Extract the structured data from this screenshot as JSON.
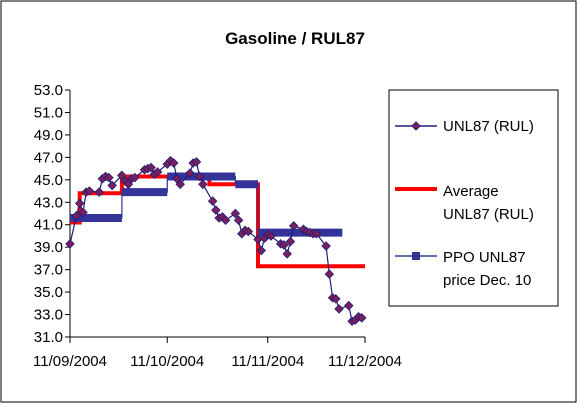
{
  "chart_data": {
    "type": "line",
    "title": "Gasoline / RUL87",
    "xlabel": "",
    "ylabel": "",
    "ylim": [
      31.0,
      53.0
    ],
    "yticks": [
      31.0,
      33.0,
      35.0,
      37.0,
      39.0,
      41.0,
      43.0,
      45.0,
      47.0,
      49.0,
      51.0,
      53.0
    ],
    "ytick_labels": [
      "31.0",
      "33.0",
      "35.0",
      "37.0",
      "39.0",
      "41.0",
      "43.0",
      "45.0",
      "47.0",
      "49.0",
      "51.0",
      "53.0"
    ],
    "xlim": [
      "2004-09-11",
      "2004-12-11"
    ],
    "xticks": [
      "2004-09-11",
      "2004-10-11",
      "2004-11-11",
      "2004-12-11"
    ],
    "xtick_labels": [
      "11/09/2004",
      "11/10/2004",
      "11/11/2004",
      "11/12/2004"
    ],
    "grid": false,
    "legend_position": "right",
    "series": [
      {
        "name": "UNL87 (RUL)",
        "color": "#1F1F7A",
        "marker_color": "#7A1F5C",
        "marker": "diamond",
        "x": [
          "2004-09-11",
          "2004-09-13",
          "2004-09-14",
          "2004-09-15",
          "2004-09-16",
          "2004-09-17",
          "2004-09-20",
          "2004-09-21",
          "2004-09-22",
          "2004-09-23",
          "2004-09-24",
          "2004-09-27",
          "2004-09-28",
          "2004-09-29",
          "2004-09-30",
          "2004-10-01",
          "2004-10-04",
          "2004-10-05",
          "2004-10-06",
          "2004-10-07",
          "2004-10-08",
          "2004-10-11",
          "2004-10-12",
          "2004-10-13",
          "2004-10-14",
          "2004-10-15",
          "2004-10-18",
          "2004-10-19",
          "2004-10-20",
          "2004-10-21",
          "2004-10-22",
          "2004-10-25",
          "2004-10-26",
          "2004-10-27",
          "2004-10-28",
          "2004-10-29",
          "2004-11-01",
          "2004-11-02",
          "2004-11-03",
          "2004-11-04",
          "2004-11-05",
          "2004-11-08",
          "2004-11-09",
          "2004-11-10",
          "2004-11-11",
          "2004-11-12",
          "2004-11-15",
          "2004-11-16",
          "2004-11-17",
          "2004-11-18",
          "2004-11-19",
          "2004-11-22",
          "2004-11-23",
          "2004-11-24",
          "2004-11-25",
          "2004-11-26",
          "2004-11-29",
          "2004-11-30",
          "2004-12-01",
          "2004-12-02",
          "2004-12-03",
          "2004-12-06",
          "2004-12-07",
          "2004-12-08",
          "2004-12-09",
          "2004-12-10"
        ],
        "values": [
          39.3,
          41.8,
          42.9,
          42.1,
          43.9,
          44.0,
          43.9,
          45.1,
          45.3,
          45.2,
          44.5,
          45.4,
          44.9,
          44.6,
          45.1,
          45.2,
          45.9,
          46.0,
          46.1,
          45.5,
          45.7,
          46.4,
          46.7,
          46.5,
          45.1,
          44.6,
          45.6,
          46.5,
          46.6,
          45.3,
          44.6,
          43.1,
          42.3,
          41.6,
          41.7,
          41.4,
          42.0,
          41.4,
          40.2,
          40.5,
          40.4,
          39.7,
          38.7,
          39.8,
          40.1,
          40.0,
          39.3,
          39.2,
          38.4,
          39.5,
          40.9,
          40.6,
          40.4,
          40.3,
          40.2,
          40.2,
          39.1,
          36.6,
          34.5,
          34.4,
          33.5,
          33.8,
          32.4,
          32.5,
          32.8,
          32.7
        ]
      },
      {
        "name": "Average UNL87 (RUL)",
        "color": "#FF0000",
        "x": [
          "2004-09-11",
          "2004-09-14",
          "2004-09-14",
          "2004-09-27",
          "2004-09-27",
          "2004-10-24",
          "2004-10-24",
          "2004-11-08",
          "2004-11-08",
          "2004-12-11"
        ],
        "values": [
          41.2,
          41.2,
          43.8,
          43.8,
          45.3,
          45.3,
          44.6,
          44.6,
          37.3,
          37.3
        ]
      },
      {
        "name": "PPO UNL87 price Dec. 10",
        "color": "#333399",
        "marker": "square",
        "x": [
          "2004-09-11",
          "2004-09-27",
          "2004-09-27",
          "2004-10-11",
          "2004-10-11",
          "2004-11-01",
          "2004-11-01",
          "2004-11-08",
          "2004-11-08",
          "2004-12-04"
        ],
        "values": [
          41.6,
          41.6,
          43.9,
          43.9,
          45.3,
          45.3,
          44.6,
          44.6,
          40.3,
          40.3
        ]
      }
    ],
    "legend": [
      {
        "lines": [
          "UNL87 (RUL)"
        ]
      },
      {
        "lines": [
          "Average",
          "UNL87 (RUL)"
        ]
      },
      {
        "lines": [
          "PPO UNL87",
          "price Dec. 10"
        ]
      }
    ]
  }
}
